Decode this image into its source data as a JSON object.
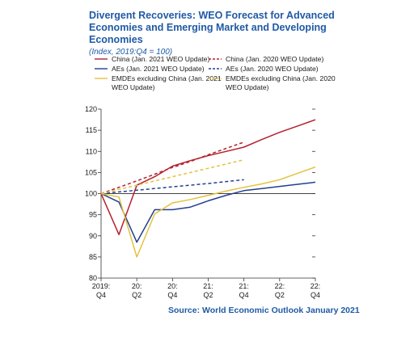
{
  "chart_data": {
    "type": "line",
    "title": "Divergent Recoveries: WEO Forecast for Advanced Economies and Emerging Market and Developing Economies",
    "title_lines": [
      "Divergent Recoveries: WEO Forecast for Advanced",
      "Economies and Emerging Market and Developing Economies"
    ],
    "subtitle": "(Index, 2019:Q4 = 100)",
    "source": "Source: World Economic Outlook January 2021",
    "ylim": [
      80,
      120
    ],
    "yticks": [
      80,
      85,
      90,
      95,
      100,
      105,
      110,
      115,
      120
    ],
    "xlim": [
      0,
      12
    ],
    "x_tick_labels": [
      {
        "x": 0,
        "line1": "2019:",
        "line2": "Q4"
      },
      {
        "x": 2,
        "line1": "20:",
        "line2": "Q2"
      },
      {
        "x": 4,
        "line1": "20:",
        "line2": "Q4"
      },
      {
        "x": 6,
        "line1": "21:",
        "line2": "Q2"
      },
      {
        "x": 8,
        "line1": "21:",
        "line2": "Q4"
      },
      {
        "x": 10,
        "line1": "22:",
        "line2": "Q2"
      },
      {
        "x": 12,
        "line1": "22:",
        "line2": "Q4"
      }
    ],
    "grid": false,
    "legend_position": "top",
    "series": [
      {
        "name": "China (Jan. 2021 WEO Update)",
        "color": "#b5202e",
        "dashed": false,
        "x": [
          0,
          1,
          2,
          3,
          4,
          5,
          6,
          7,
          8,
          9,
          10,
          11,
          12
        ],
        "y": [
          100,
          90.3,
          102,
          104,
          106.5,
          107.8,
          109,
          110,
          111,
          112.8,
          114.5,
          116,
          117.5
        ]
      },
      {
        "name": "China (Jan. 2020 WEO Update)",
        "color": "#b5202e",
        "dashed": true,
        "x": [
          0,
          1,
          2,
          3,
          4,
          5,
          6,
          7,
          8
        ],
        "y": [
          100,
          101.5,
          103,
          104.6,
          106.2,
          107.6,
          109.2,
          110.7,
          112.2
        ]
      },
      {
        "name": "AEs (Jan. 2021 WEO Update)",
        "color": "#23408e",
        "dashed": false,
        "x": [
          0,
          1,
          2,
          3,
          4,
          5,
          6,
          7,
          8,
          9,
          10,
          11,
          12
        ],
        "y": [
          100,
          98,
          88.5,
          96.2,
          96.2,
          96.8,
          98.3,
          99.6,
          100.7,
          101.2,
          101.7,
          102.2,
          102.7
        ]
      },
      {
        "name": "AEs (Jan. 2020 WEO Update)",
        "color": "#23408e",
        "dashed": true,
        "x": [
          0,
          2,
          4,
          6,
          8
        ],
        "y": [
          100,
          100.8,
          101.6,
          102.4,
          103.3
        ]
      },
      {
        "name": "EMDEs excluding China (Jan. 2021 WEO Update)",
        "color": "#e3c23f",
        "dashed": false,
        "x": [
          0,
          1,
          2,
          3,
          4,
          5,
          6,
          7,
          8,
          9,
          10,
          11,
          12
        ],
        "y": [
          100,
          99.2,
          85,
          95.2,
          97.8,
          98.6,
          99.6,
          100.6,
          101.5,
          102.3,
          103.3,
          104.8,
          106.3
        ]
      },
      {
        "name": "EMDEs excluding China (Jan. 2020 WEO Update)",
        "color": "#e3c23f",
        "dashed": true,
        "x": [
          0,
          1,
          2,
          3,
          4,
          5,
          6,
          7,
          8
        ],
        "y": [
          100,
          101,
          102,
          103,
          104,
          105,
          106,
          107,
          108
        ]
      }
    ],
    "legend": [
      {
        "series": 0,
        "lines": [
          "China (Jan. 2021 WEO Update)"
        ],
        "col": 0,
        "row": 0
      },
      {
        "series": 1,
        "lines": [
          "China (Jan. 2020 WEO Update)"
        ],
        "col": 1,
        "row": 0
      },
      {
        "series": 2,
        "lines": [
          "AEs (Jan. 2021 WEO Update)"
        ],
        "col": 0,
        "row": 1
      },
      {
        "series": 3,
        "lines": [
          "AEs (Jan. 2020 WEO Update)"
        ],
        "col": 1,
        "row": 1
      },
      {
        "series": 4,
        "lines": [
          "EMDEs excluding China (Jan. 2021",
          "WEO Update)"
        ],
        "col": 0,
        "row": 2
      },
      {
        "series": 5,
        "lines": [
          "EMDEs excluding China (Jan. 2020",
          "WEO Update)"
        ],
        "col": 1,
        "row": 2
      }
    ]
  }
}
